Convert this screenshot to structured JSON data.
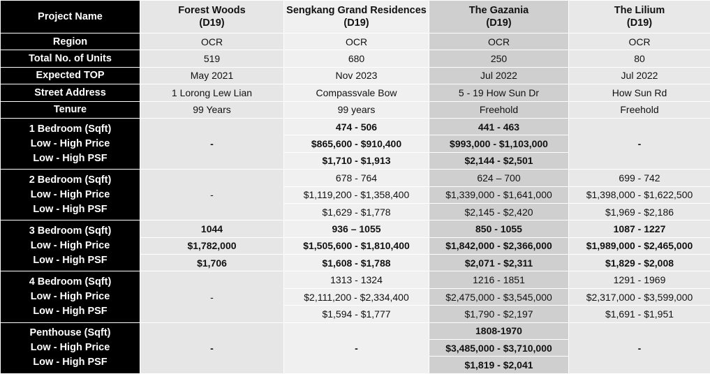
{
  "header": {
    "label": "Project Name",
    "projects": [
      {
        "name": "Forest Woods",
        "district": "(D19)"
      },
      {
        "name": "Sengkang Grand Residences",
        "district": "(D19)"
      },
      {
        "name": "The Gazania",
        "district": "(D19)"
      },
      {
        "name": "The Lilium",
        "district": "(D19)"
      }
    ]
  },
  "rows": [
    {
      "label": "Region",
      "values": [
        "OCR",
        "OCR",
        "OCR",
        "OCR"
      ]
    },
    {
      "label": "Total No. of Units",
      "values": [
        "519",
        "680",
        "250",
        "80"
      ]
    },
    {
      "label": "Expected TOP",
      "values": [
        "May 2021",
        "Nov 2023",
        "Jul 2022",
        "Jul 2022"
      ]
    },
    {
      "label": "Street Address",
      "values": [
        "1 Lorong Lew Lian",
        "Compassvale Bow",
        "5 - 19 How Sun Dr",
        "How Sun Rd"
      ]
    },
    {
      "label": "Tenure",
      "values": [
        "99 Years",
        "99 years",
        "Freehold",
        "Freehold"
      ]
    }
  ],
  "groups": [
    {
      "labels": [
        "1 Bedroom (Sqft)",
        "Low - High Price",
        "Low - High PSF"
      ],
      "values": [
        [
          "-"
        ],
        [
          "474 - 506",
          "$865,600 - $910,400",
          "$1,710 - $1,913"
        ],
        [
          "441 - 463",
          "$993,000 - $1,103,000",
          "$2,144 - $2,501"
        ],
        [
          "-"
        ]
      ]
    },
    {
      "labels": [
        "2 Bedroom (Sqft)",
        "Low - High Price",
        "Low - High PSF"
      ],
      "values": [
        [
          "-"
        ],
        [
          "678 - 764",
          "$1,119,200 - $1,358,400",
          "$1,629 - $1,778"
        ],
        [
          "624 – 700",
          "$1,339,000 - $1,641,000",
          "$2,145 - $2,420"
        ],
        [
          "699 - 742",
          "$1,398,000 - $1,622,500",
          "$1,969 - $2,186"
        ]
      ]
    },
    {
      "labels": [
        "3 Bedroom (Sqft)",
        "Low - High Price",
        "Low - High PSF"
      ],
      "values": [
        [
          "1044",
          "$1,782,000",
          "$1,706"
        ],
        [
          "936 – 1055",
          "$1,505,600 - $1,810,400",
          "$1,608 - $1,788"
        ],
        [
          "850 - 1055",
          "$1,842,000 - $2,366,000",
          "$2,071 - $2,311"
        ],
        [
          "1087 - 1227",
          "$1,989,000 - $2,465,000",
          "$1,829 - $2,008"
        ]
      ]
    },
    {
      "labels": [
        "4 Bedroom (Sqft)",
        "Low - High Price",
        "Low - High PSF"
      ],
      "values": [
        [
          "-"
        ],
        [
          "1313 - 1324",
          "$2,111,200 - $2,334,400",
          "$1,594 - $1,777"
        ],
        [
          "1216 - 1851",
          "$2,475,000 - $3,545,000",
          "$1,790 - $2,197"
        ],
        [
          "1291 - 1969",
          "$2,317,000 - $3,599,000",
          "$1,691 - $1,951"
        ]
      ]
    },
    {
      "labels": [
        "Penthouse (Sqft)",
        "Low - High Price",
        "Low - High PSF"
      ],
      "values": [
        [
          "-"
        ],
        [
          "-"
        ],
        [
          "1808-1970",
          "$3,485,000 - $3,710,000",
          "$1,819 - $2,041"
        ],
        [
          "-"
        ]
      ]
    }
  ]
}
